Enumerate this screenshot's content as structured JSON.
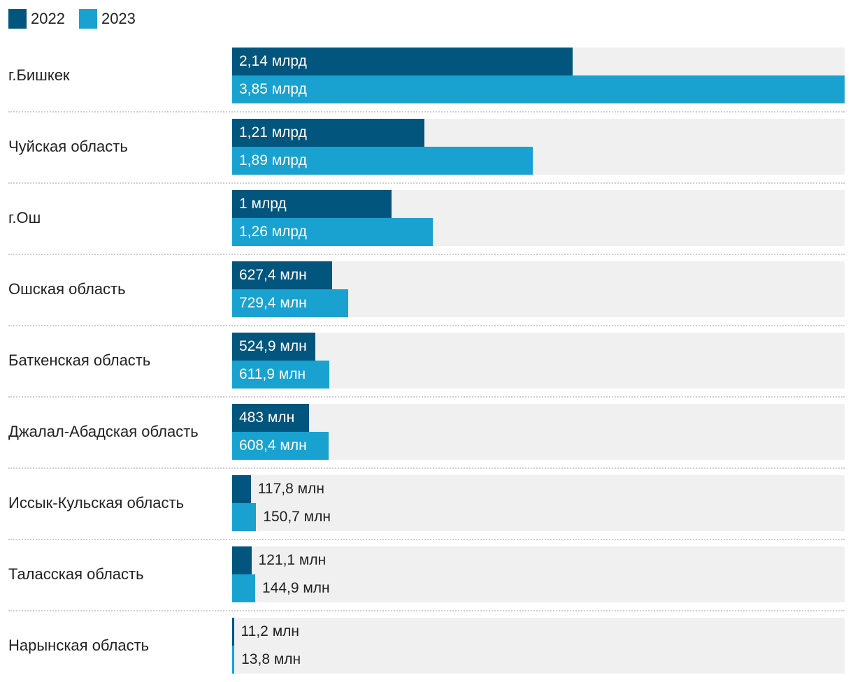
{
  "chart_data": {
    "type": "bar",
    "orientation": "horizontal",
    "legend": {
      "position": "top-left"
    },
    "categories": [
      "г.Бишкек",
      "Чуйская область",
      "г.Ош",
      "Ошская область",
      "Баткенская область",
      "Джалал-Абадская область",
      "Иссык-Кульская область",
      "Таласская область",
      "Нарынская область"
    ],
    "xlim": [
      0,
      3.85
    ],
    "unit": "млрд",
    "series": [
      {
        "name": "2022",
        "color": "#02557d",
        "values": [
          2.14,
          1.21,
          1.0,
          0.6274,
          0.5249,
          0.483,
          0.1178,
          0.1211,
          0.0112
        ],
        "labels": [
          "2,14 млрд",
          "1,21 млрд",
          "1 млрд",
          "627,4 млн",
          "524,9 млн",
          "483 млн",
          "117,8 млн",
          "121,1 млн",
          "11,2 млн"
        ]
      },
      {
        "name": "2023",
        "color": "#19a2d0",
        "values": [
          3.85,
          1.89,
          1.26,
          0.7294,
          0.6119,
          0.6084,
          0.1507,
          0.1449,
          0.0138
        ],
        "labels": [
          "3,85 млрд",
          "1,89 млрд",
          "1,26 млрд",
          "729,4 млн",
          "611,9 млн",
          "608,4 млн",
          "150,7 млн",
          "144,9 млн",
          "13,8 млн"
        ]
      }
    ]
  }
}
